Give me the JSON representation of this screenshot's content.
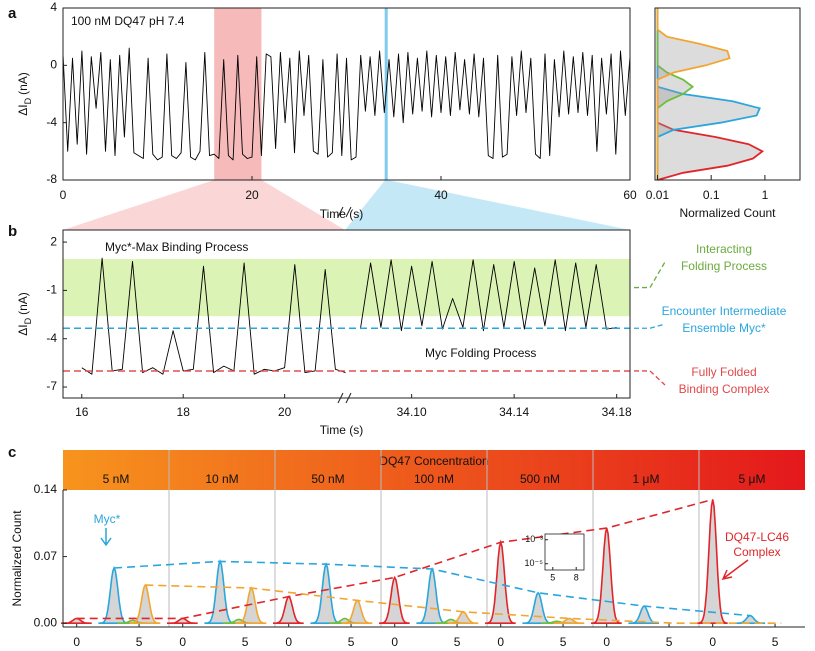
{
  "chart_data": [
    {
      "type": "line",
      "panel_label": "a",
      "annotation": "100 nM DQ47 pH 7.4",
      "x_label": "Time (s)",
      "y_label": {
        "main": "ΔI",
        "sub": "D",
        "unit": "(nA)"
      },
      "xlim": [
        0,
        60
      ],
      "xticks": [
        0,
        20,
        40,
        60
      ],
      "ylim": [
        -8,
        4
      ],
      "yticks": [
        -8,
        -4,
        0,
        4
      ],
      "color": "#000000",
      "highlights": [
        {
          "xlim": [
            16,
            21
          ],
          "color": "#f4a3a3"
        },
        {
          "x": 34.2,
          "color": "#7fcbee"
        }
      ],
      "x": [
        0,
        0.5,
        1,
        1.5,
        2,
        2.5,
        3,
        3.5,
        4,
        4.5,
        5,
        5.5,
        6,
        6.5,
        7,
        7.5,
        8,
        8.5,
        9,
        9.5,
        10,
        10.5,
        11,
        11.5,
        12,
        12.5,
        13,
        13.5,
        14,
        14.5,
        15,
        15.5,
        16,
        16.5,
        17,
        17.5,
        18,
        18.5,
        19,
        19.5,
        20,
        20.5,
        21,
        21.5,
        22,
        22.5,
        23,
        23.5,
        24,
        24.5,
        25,
        25.5,
        26,
        26.5,
        27,
        27.5,
        28,
        28.5,
        29,
        29.5,
        30,
        30.5,
        31,
        31.5,
        32,
        32.5,
        33,
        33.5,
        34,
        34.5,
        35,
        35.5,
        36,
        36.5,
        37,
        37.5,
        38,
        38.5,
        39,
        39.5,
        40,
        40.5,
        41,
        41.5,
        42,
        42.5,
        43,
        43.5,
        44,
        44.5,
        45,
        45.5,
        46,
        46.5,
        47,
        47.5,
        48,
        48.5,
        49,
        49.5,
        50,
        50.5,
        51,
        51.5,
        52,
        52.5,
        53,
        53.5,
        54,
        54.5,
        55,
        55.5,
        56,
        56.5,
        57,
        57.5,
        58,
        58.5,
        59,
        59.5,
        60
      ],
      "values": [
        0.8,
        -6,
        0.5,
        -5.5,
        1,
        -6.2,
        0.6,
        -3,
        0.9,
        -6,
        0.4,
        -6.3,
        0.7,
        -5,
        1.2,
        -6.1,
        -6.3,
        -6.5,
        0.5,
        -6.2,
        -6.6,
        -6.4,
        0.8,
        -6.3,
        -6.5,
        -6.1,
        0.2,
        -6.4,
        -6.6,
        -6,
        0.9,
        -6.3,
        -6.2,
        -6.5,
        0.4,
        -6.3,
        -6.6,
        0.7,
        -6.2,
        -6.5,
        -6.4,
        0.6,
        -6.3,
        0.8,
        0.6,
        -5.8,
        0.9,
        -4,
        0.5,
        -6.1,
        1,
        -3.5,
        0.7,
        -6,
        -6.2,
        0.4,
        -6.4,
        -6.1,
        0.8,
        -6.3,
        0.5,
        -6.6,
        -6.4,
        0.7,
        -3.2,
        0.6,
        -3.5,
        1,
        -3.3,
        0.4,
        -3.6,
        0.8,
        -4,
        0.9,
        -3.4,
        0.5,
        -3.2,
        1,
        -3.6,
        0.7,
        -3.3,
        0.6,
        -3.5,
        0.9,
        -3.1,
        0.4,
        -3.4,
        0.8,
        -3.6,
        0.5,
        -6.3,
        -6.5,
        0.7,
        -6.4,
        -6.2,
        0.6,
        -3.5,
        1,
        -3.3,
        0.5,
        -6.2,
        -6.5,
        0.8,
        -6.3,
        0.4,
        -3.6,
        1,
        -3.4,
        0.6,
        -3.3,
        0.9,
        -3.5,
        0.7,
        -6,
        0.5,
        -3.4,
        0.8,
        -6.2,
        1,
        -3.5,
        0.6
      ]
    },
    {
      "type": "histogram-curve",
      "x_label": "Normalized Count",
      "xscale": "log",
      "xlim": [
        0.009,
        4.5
      ],
      "xticks": [
        0.01,
        0.1,
        1
      ],
      "ylim": [
        -8,
        4
      ],
      "y": [
        -8,
        -7.5,
        -7,
        -6.5,
        -6,
        -5.5,
        -5,
        -4.5,
        -4,
        -3.5,
        -3,
        -2.5,
        -2,
        -1.5,
        -1,
        -0.5,
        0,
        0.5,
        1,
        1.5,
        2,
        2.5,
        3,
        3.5,
        4
      ],
      "series": [
        {
          "color": "#e0262a",
          "values": [
            0.01,
            0.03,
            0.2,
            0.6,
            0.9,
            0.5,
            0.12,
            0.02,
            0.01,
            0.01,
            0.01,
            0.01,
            0.01,
            0.01,
            0.01,
            0.01,
            0.01,
            0.01,
            0.01,
            0.01,
            0.01,
            0.01,
            0.01,
            0.01,
            0.01
          ]
        },
        {
          "color": "#2aa6dd",
          "values": [
            0.01,
            0.01,
            0.01,
            0.01,
            0.01,
            0.01,
            0.01,
            0.02,
            0.15,
            0.7,
            0.8,
            0.25,
            0.03,
            0.01,
            0.01,
            0.01,
            0.01,
            0.01,
            0.01,
            0.01,
            0.01,
            0.01,
            0.01,
            0.01,
            0.01
          ]
        },
        {
          "color": "#6cbf3a",
          "values": [
            0.01,
            0.01,
            0.01,
            0.01,
            0.01,
            0.01,
            0.01,
            0.01,
            0.01,
            0.01,
            0.01,
            0.015,
            0.03,
            0.045,
            0.03,
            0.015,
            0.01,
            0.01,
            0.01,
            0.01,
            0.01,
            0.01,
            0.01,
            0.01,
            0.01
          ]
        },
        {
          "color": "#f2a531",
          "values": [
            0.01,
            0.01,
            0.01,
            0.01,
            0.01,
            0.01,
            0.01,
            0.01,
            0.01,
            0.01,
            0.01,
            0.01,
            0.01,
            0.01,
            0.01,
            0.02,
            0.08,
            0.22,
            0.2,
            0.06,
            0.015,
            0.01,
            0.01,
            0.01,
            0.01
          ]
        }
      ]
    },
    {
      "type": "broken-line",
      "panel_label": "b",
      "x_label": "Time (s)",
      "y_label": {
        "main": "ΔI",
        "sub": "D",
        "unit": "(nA)"
      },
      "ylim": [
        -7.68,
        2.75
      ],
      "yticks": [
        2,
        -1,
        -4,
        -7
      ],
      "color": "#000000",
      "annotations": [
        "Myc*-Max Binding Process",
        "Myc Folding Process"
      ],
      "band": {
        "ylim": [
          -2.6,
          0.95
        ],
        "color": "#dbf3b4"
      },
      "levels": [
        {
          "y": -3.35,
          "color": "#2aa6dd"
        },
        {
          "y": -6,
          "color": "#e05050"
        }
      ],
      "side_labels": [
        {
          "lines": [
            "Interacting",
            "Folding Process"
          ],
          "color": "#6cab3c"
        },
        {
          "lines": [
            "Encounter Intermediate",
            "Ensemble Myc*"
          ],
          "color": "#2aa6dd"
        },
        {
          "lines": [
            "Fully Folded",
            "Binding Complex"
          ],
          "color": "#e0484a"
        }
      ],
      "segments": [
        {
          "xlim": [
            15.63,
            21.19
          ],
          "xticks": [
            16,
            18,
            20
          ],
          "x": [
            16,
            16.2,
            16.4,
            16.6,
            16.8,
            17,
            17.2,
            17.4,
            17.6,
            17.8,
            18,
            18.2,
            18.4,
            18.6,
            18.8,
            19,
            19.2,
            19.4,
            19.6,
            19.8,
            20,
            20.2,
            20.4,
            20.6,
            20.8,
            21,
            21.2
          ],
          "values": [
            -5.8,
            -6.2,
            1,
            -6,
            -5.9,
            0.8,
            -6.1,
            -5.8,
            -6.2,
            -3.5,
            -6,
            -5.9,
            0.5,
            -6.1,
            -5.7,
            -6,
            0.7,
            -6.2,
            -5.9,
            -6,
            -5.8,
            0.6,
            -6.1,
            -6,
            0.3,
            -5.9,
            -6.1
          ]
        },
        {
          "xlim": [
            34.074,
            34.1852
          ],
          "xticks": [
            {
              "value": 34.1,
              "label": "34.10"
            },
            34.14,
            34.18
          ],
          "x": [
            34.08,
            34.084,
            34.088,
            34.092,
            34.096,
            34.1,
            34.104,
            34.108,
            34.112,
            34.116,
            34.12,
            34.124,
            34.128,
            34.132,
            34.136,
            34.14,
            34.144,
            34.148,
            34.152,
            34.156,
            34.16,
            34.164,
            34.168,
            34.172,
            34.176,
            34.18
          ],
          "values": [
            -3.4,
            0.7,
            -3.3,
            0.9,
            -3.5,
            0.5,
            -3.2,
            0.8,
            -3.4,
            -1.5,
            -3.3,
            0.9,
            -3.5,
            0.6,
            -3.3,
            0.8,
            -3.4,
            0.4,
            -3.2,
            0.9,
            -3.5,
            0.7,
            -3.3,
            0.6,
            -3.4,
            -3.3
          ]
        }
      ]
    },
    {
      "type": "peak",
      "panel_label": "c",
      "header": "DQ47 Concentration",
      "header_colors": [
        "#f7941d",
        "#e4181c"
      ],
      "categories": [
        "5 nM",
        "10 nM",
        "50 nM",
        "100 nM",
        "500 nM",
        "1 μM",
        "5 μM"
      ],
      "y_label": "Normalized Count",
      "ylim": [
        -0.004,
        0.14
      ],
      "yticks": [
        {
          "value": 0,
          "label": "0.00"
        },
        0.07,
        0.14
      ],
      "xlim": [
        -1.1,
        7.4
      ],
      "xticks": [
        0,
        5
      ],
      "series": [
        {
          "color": "#e0262a",
          "center": 0,
          "trend": true,
          "values": [
            0.005,
            0.005,
            0.028,
            0.048,
            0.085,
            0.1,
            0.13
          ]
        },
        {
          "color": "#2aa6dd",
          "center": 3,
          "trend": true,
          "values": [
            0.058,
            0.065,
            0.062,
            0.057,
            0.032,
            0.018,
            0.008
          ]
        },
        {
          "color": "#6cbf3a",
          "center": 4.5,
          "trend": false,
          "values": [
            0.003,
            0.004,
            0.005,
            0.004,
            0.002,
            0,
            0
          ]
        },
        {
          "color": "#f2a531",
          "center": 5.5,
          "trend": true,
          "values": [
            0.04,
            0.037,
            0.024,
            0.012,
            0.005,
            0,
            0
          ]
        }
      ],
      "notes": [
        {
          "lines": [
            "Myc*"
          ],
          "color": "#2aa6dd"
        },
        {
          "lines": [
            "DQ47-LC46",
            "Complex"
          ],
          "color": "#e0262a"
        }
      ],
      "inset": {
        "xlim": [
          4,
          9
        ],
        "xticks": [
          5,
          8
        ],
        "ylim": [
          3e-06,
          0.003
        ],
        "yticks": [
          {
            "value": 0.001,
            "label": "10⁻³"
          },
          {
            "value": 1e-05,
            "label": "10⁻⁵"
          }
        ]
      }
    }
  ]
}
